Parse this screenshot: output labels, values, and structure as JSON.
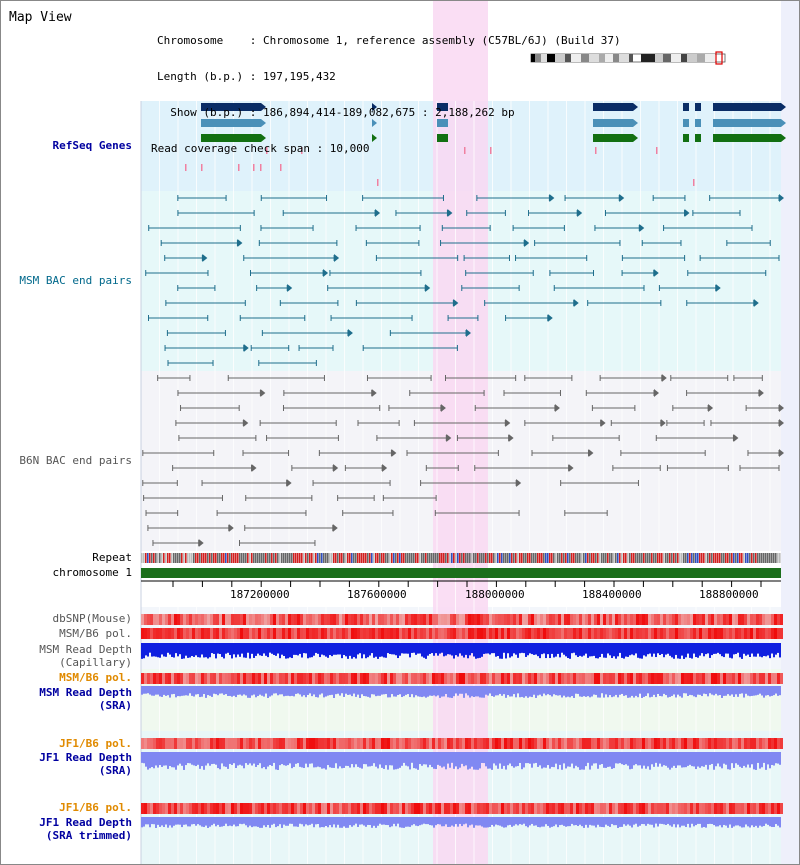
{
  "header": {
    "title": "Map View",
    "info_lines": [
      "Chromosome    : Chromosome 1, reference assembly (C57BL/6J) (Build 37)",
      "Length (b.p.) : 197,195,432",
      "  Show (b.p.) : 186,894,414-189,082,675 : 2,188,262 bp",
      "Read coverage check span : 10,000"
    ]
  },
  "tracks": {
    "refseq": "RefSeq Genes",
    "msm_bac": "MSM BAC end pairs",
    "b6n_bac": "B6N BAC end pairs",
    "repeat": "Repeat",
    "chromosome": "chromosome 1",
    "dbsnp": "dbSNP(Mouse)",
    "msm_b6_pol": "MSM/B6 pol.",
    "msm_depth_cap_1": "MSM Read Depth",
    "msm_depth_cap_2": "(Capillary)",
    "msm_b6_pol_sra": "MSM/B6 pol.",
    "msm_depth_sra_1": "MSM Read Depth",
    "msm_depth_sra_2": "(SRA)",
    "jf1_b6_pol": "JF1/B6 pol.",
    "jf1_depth_1": "JF1 Read Depth",
    "jf1_depth_2": "(SRA)",
    "jf1_b6_pol_2": "JF1/B6 pol.",
    "jf1_depth_trim_1": "JF1 Read Depth",
    "jf1_depth_trim_2": "(SRA trimmed)"
  },
  "axis": {
    "ticks": [
      "187200000",
      "187600000",
      "188000000",
      "188400000",
      "188800000"
    ]
  },
  "colors": {
    "refseq_bg": "#dff2fb",
    "msm_bg": "#e6f8f9",
    "b6n_bg": "#f4f4f8",
    "highlight": "#f9d8f2",
    "gene_navy": "#0a2d66",
    "gene_blue": "#4a90b8",
    "gene_green": "#127012",
    "msm_line": "#1f6e8c",
    "b6n_line": "#666666",
    "chromosome": "#1b6e1b",
    "depth_dark": "#1020e0",
    "depth_light": "#8088f2",
    "pol_red": "#f04040"
  }
}
